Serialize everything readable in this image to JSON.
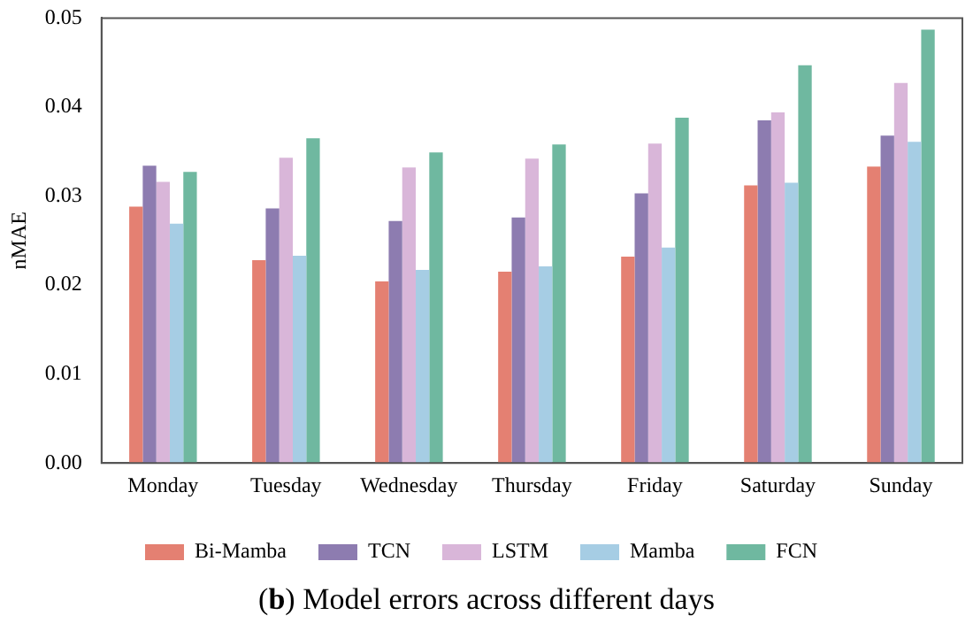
{
  "chart_data": {
    "type": "bar",
    "title": "(b) Model errors across different days",
    "ylabel": "nMAE",
    "categories": [
      "Monday",
      "Tuesday",
      "Wednesday",
      "Thursday",
      "Friday",
      "Saturday",
      "Sunday"
    ],
    "series": [
      {
        "name": "Bi-Mamba",
        "color": "#e48072",
        "values": [
          0.0288,
          0.0228,
          0.0204,
          0.0215,
          0.0232,
          0.0312,
          0.0333
        ]
      },
      {
        "name": "TCN",
        "color": "#8d7cb0",
        "values": [
          0.0334,
          0.0286,
          0.0272,
          0.0276,
          0.0303,
          0.0385,
          0.0368
        ]
      },
      {
        "name": "LSTM",
        "color": "#d9b6d9",
        "values": [
          0.0316,
          0.0343,
          0.0332,
          0.0342,
          0.0359,
          0.0394,
          0.0427
        ]
      },
      {
        "name": "Mamba",
        "color": "#a6cde4",
        "values": [
          0.0269,
          0.0233,
          0.0217,
          0.0221,
          0.0242,
          0.0315,
          0.0361
        ]
      },
      {
        "name": "FCN",
        "color": "#6fb8a0",
        "values": [
          0.0327,
          0.0365,
          0.0349,
          0.0358,
          0.0388,
          0.0447,
          0.0487
        ]
      }
    ],
    "ylim": [
      0,
      0.05
    ],
    "yticks": [
      {
        "value": 0,
        "label": "0.00"
      },
      {
        "value": 0.01,
        "label": "0.01"
      },
      {
        "value": 0.02,
        "label": "0.02"
      },
      {
        "value": 0.03,
        "label": "0.03"
      },
      {
        "value": 0.04,
        "label": "0.04"
      },
      {
        "value": 0.05,
        "label": "0.05"
      }
    ],
    "grid": false,
    "legend": "bottom"
  }
}
